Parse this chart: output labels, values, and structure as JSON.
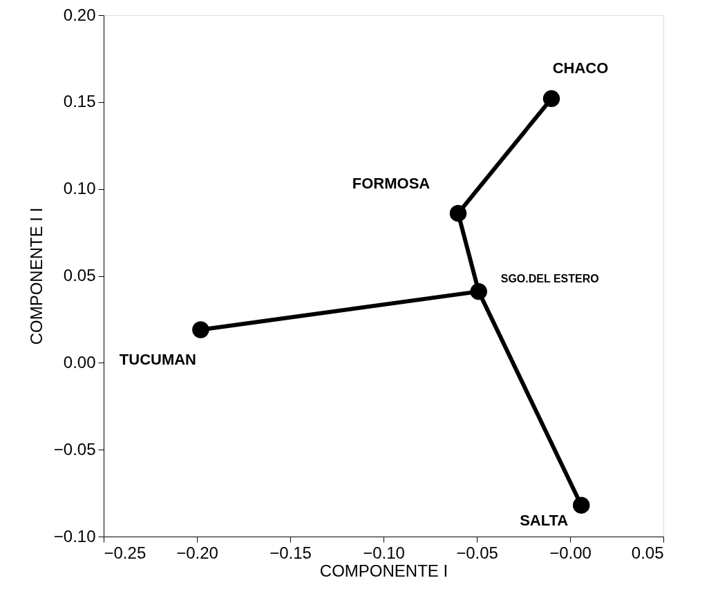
{
  "chart_data": {
    "type": "scatter",
    "xlabel": "COMPONENTE I",
    "ylabel": "COMPONENTE I I",
    "xlim": [
      -0.25,
      0.05
    ],
    "ylim": [
      -0.1,
      0.2
    ],
    "xticks": [
      {
        "value": -0.25,
        "label": "−0.25"
      },
      {
        "value": -0.2,
        "label": "−0.20"
      },
      {
        "value": -0.15,
        "label": "−0.15"
      },
      {
        "value": -0.1,
        "label": "−0.10"
      },
      {
        "value": -0.05,
        "label": "−0.05"
      },
      {
        "value": 0,
        "label": "−0.00"
      },
      {
        "value": 0.05,
        "label": "0.05"
      }
    ],
    "yticks": [
      {
        "value": -0.1,
        "label": "−0.10"
      },
      {
        "value": -0.05,
        "label": "−0.05"
      },
      {
        "value": 0,
        "label": "0.00"
      },
      {
        "value": 0.05,
        "label": "0.05"
      },
      {
        "value": 0.1,
        "label": "0.10"
      },
      {
        "value": 0.15,
        "label": "0.15"
      },
      {
        "value": 0.2,
        "label": "0.20"
      }
    ],
    "grid": false,
    "marker": "circle",
    "series": [
      {
        "type": "line",
        "marker": "none",
        "color": "#000000",
        "x": [
          -0.198,
          -0.049,
          -0.06,
          -0.01
        ],
        "values": [
          0.019,
          0.041,
          0.086,
          0.152
        ]
      },
      {
        "type": "line",
        "marker": "none",
        "color": "#000000",
        "x": [
          -0.049,
          0.006
        ],
        "values": [
          0.041,
          -0.082
        ]
      },
      {
        "type": "scatter",
        "color": "#000000",
        "x": [
          -0.01,
          -0.06,
          -0.049,
          -0.198,
          0.006
        ],
        "values": [
          0.152,
          0.086,
          0.041,
          0.019,
          -0.082
        ]
      }
    ],
    "annotations": [
      {
        "text": "CHACO",
        "x": -0.01,
        "y": 0.152
      },
      {
        "text": "FORMOSA",
        "x": -0.06,
        "y": 0.086
      },
      {
        "text": "SGO.DEL ESTERO",
        "x": -0.049,
        "y": 0.041
      },
      {
        "text": "TUCUMAN",
        "x": -0.198,
        "y": 0.019
      },
      {
        "text": "SALTA",
        "x": 0.006,
        "y": -0.082
      }
    ]
  }
}
